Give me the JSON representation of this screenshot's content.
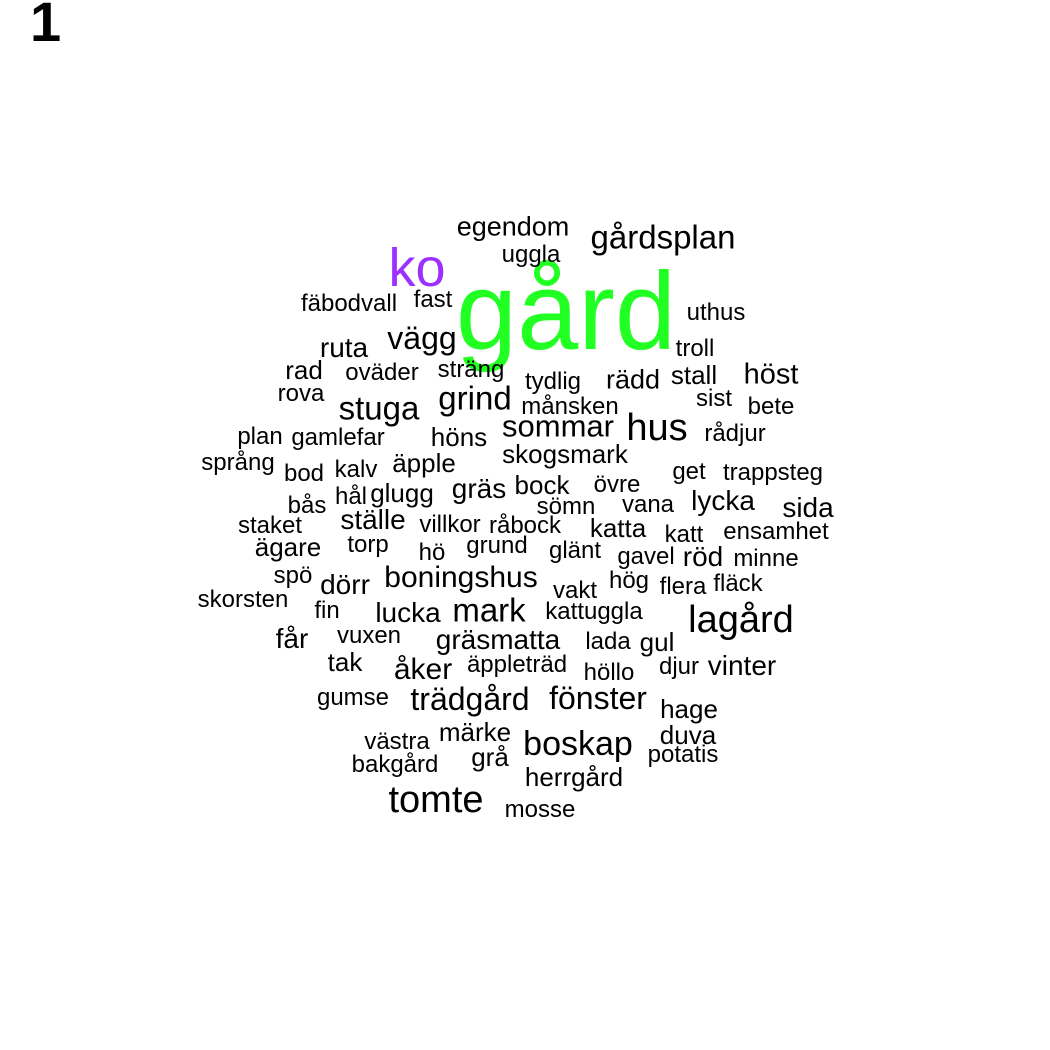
{
  "panel_label": "1",
  "colors": {
    "highlight_primary": "#22ff22",
    "highlight_secondary": "#9b30ff",
    "default": "#000000"
  },
  "words": [
    {
      "text": "gård",
      "emphasis": "primary"
    },
    {
      "text": "ko",
      "emphasis": "secondary"
    },
    {
      "text": "egendom"
    },
    {
      "text": "gårdsplan"
    },
    {
      "text": "uggla"
    },
    {
      "text": "fäbodvall"
    },
    {
      "text": "fast"
    },
    {
      "text": "uthus"
    },
    {
      "text": "vägg"
    },
    {
      "text": "ruta"
    },
    {
      "text": "troll"
    },
    {
      "text": "rad"
    },
    {
      "text": "oväder"
    },
    {
      "text": "sträng"
    },
    {
      "text": "tydlig"
    },
    {
      "text": "rädd"
    },
    {
      "text": "stall"
    },
    {
      "text": "höst"
    },
    {
      "text": "rova"
    },
    {
      "text": "stuga"
    },
    {
      "text": "grind"
    },
    {
      "text": "månsken"
    },
    {
      "text": "sist"
    },
    {
      "text": "bete"
    },
    {
      "text": "sommar"
    },
    {
      "text": "hus"
    },
    {
      "text": "plan"
    },
    {
      "text": "gamlefar"
    },
    {
      "text": "höns"
    },
    {
      "text": "rådjur"
    },
    {
      "text": "skogsmark"
    },
    {
      "text": "språng"
    },
    {
      "text": "bod"
    },
    {
      "text": "kalv"
    },
    {
      "text": "äpple"
    },
    {
      "text": "get"
    },
    {
      "text": "trappsteg"
    },
    {
      "text": "gräs"
    },
    {
      "text": "bock"
    },
    {
      "text": "övre"
    },
    {
      "text": "glugg"
    },
    {
      "text": "hål"
    },
    {
      "text": "lycka"
    },
    {
      "text": "bås"
    },
    {
      "text": "sömn"
    },
    {
      "text": "vana"
    },
    {
      "text": "sida"
    },
    {
      "text": "ställe"
    },
    {
      "text": "staket"
    },
    {
      "text": "villkor"
    },
    {
      "text": "råbock"
    },
    {
      "text": "katta"
    },
    {
      "text": "katt"
    },
    {
      "text": "ensamhet"
    },
    {
      "text": "torp"
    },
    {
      "text": "ägare"
    },
    {
      "text": "grund"
    },
    {
      "text": "hö"
    },
    {
      "text": "glänt"
    },
    {
      "text": "gavel"
    },
    {
      "text": "röd"
    },
    {
      "text": "minne"
    },
    {
      "text": "spö"
    },
    {
      "text": "boningshus"
    },
    {
      "text": "hög"
    },
    {
      "text": "fläck"
    },
    {
      "text": "dörr"
    },
    {
      "text": "vakt"
    },
    {
      "text": "flera"
    },
    {
      "text": "skorsten"
    },
    {
      "text": "mark"
    },
    {
      "text": "kattuggla"
    },
    {
      "text": "lagård"
    },
    {
      "text": "fin"
    },
    {
      "text": "lucka"
    },
    {
      "text": "får"
    },
    {
      "text": "vuxen"
    },
    {
      "text": "gräsmatta"
    },
    {
      "text": "lada"
    },
    {
      "text": "gul"
    },
    {
      "text": "tak"
    },
    {
      "text": "åker"
    },
    {
      "text": "äppleträd"
    },
    {
      "text": "djur"
    },
    {
      "text": "vinter"
    },
    {
      "text": "höllo"
    },
    {
      "text": "gumse"
    },
    {
      "text": "trädgård"
    },
    {
      "text": "fönster"
    },
    {
      "text": "hage"
    },
    {
      "text": "märke"
    },
    {
      "text": "västra"
    },
    {
      "text": "duva"
    },
    {
      "text": "boskap"
    },
    {
      "text": "grå"
    },
    {
      "text": "potatis"
    },
    {
      "text": "bakgård"
    },
    {
      "text": "herrgård"
    },
    {
      "text": "tomte"
    },
    {
      "text": "mosse"
    }
  ]
}
